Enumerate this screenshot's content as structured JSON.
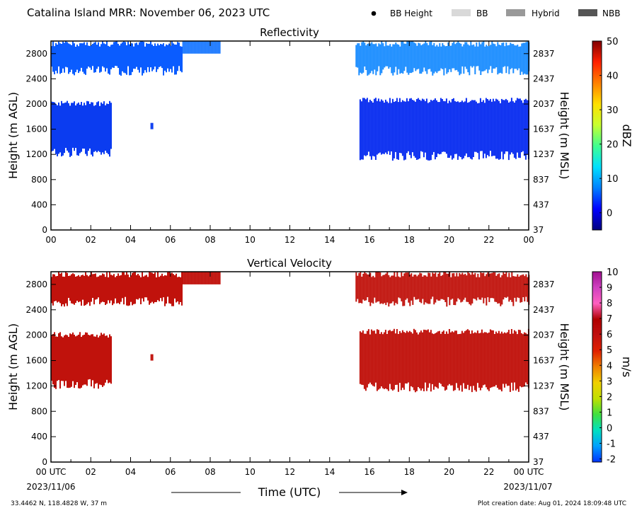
{
  "header": {
    "title": "Catalina Island MRR:  November 06, 2023 UTC",
    "legend": [
      {
        "label": "BB Height",
        "kind": "dot",
        "color": "#000000"
      },
      {
        "label": "BB",
        "kind": "swatch",
        "color": "#d9d9d9"
      },
      {
        "label": "Hybrid",
        "kind": "swatch",
        "color": "#999999"
      },
      {
        "label": "NBB",
        "kind": "swatch",
        "color": "#555555"
      }
    ]
  },
  "chart_data": [
    {
      "type": "heatmap",
      "title": "Reflectivity",
      "ylabel": "Height (m AGL)",
      "ylabel_right": "Height (m MSL)",
      "xlim": [
        0,
        24
      ],
      "ylim": [
        0,
        3000
      ],
      "x_ticks": [
        "00",
        "02",
        "04",
        "06",
        "08",
        "10",
        "12",
        "14",
        "16",
        "18",
        "20",
        "22",
        "00"
      ],
      "y_ticks": [
        "0",
        "400",
        "800",
        "1200",
        "1600",
        "2000",
        "2400",
        "2800"
      ],
      "y_ticks_right": [
        "37",
        "437",
        "837",
        "1237",
        "1637",
        "2037",
        "2437",
        "2837"
      ],
      "colorbar": {
        "label": "dBZ",
        "range": [
          -5,
          50
        ],
        "ticks": [
          "0",
          "10",
          "20",
          "30",
          "40",
          "50"
        ]
      },
      "regions": [
        {
          "x": [
            0.0,
            6.6
          ],
          "y": [
            2450,
            3000
          ],
          "value": 4,
          "color": "#0a5cff",
          "note": "upper echo layer, early period"
        },
        {
          "x": [
            6.6,
            8.5
          ],
          "y": [
            2800,
            3000
          ],
          "value": 6,
          "color": "#1f7bff"
        },
        {
          "x": [
            0.0,
            3.0
          ],
          "y": [
            1150,
            2050
          ],
          "value": 2,
          "color": "#0b3cf0",
          "note": "lower echo layer, early period"
        },
        {
          "x": [
            5.0,
            5.1
          ],
          "y": [
            1600,
            1700
          ],
          "value": 2,
          "color": "#0b3cf0"
        },
        {
          "x": [
            15.3,
            24.0
          ],
          "y": [
            2450,
            3000
          ],
          "value": 6,
          "color": "#1a8cff",
          "note": "upper echo layer, late period"
        },
        {
          "x": [
            15.5,
            24.0
          ],
          "y": [
            1100,
            2100
          ],
          "value": 1,
          "color": "#0a2ef0",
          "note": "lower echo layer, late period"
        }
      ]
    },
    {
      "type": "heatmap",
      "title": "Vertical Velocity",
      "ylabel": "Height (m AGL)",
      "ylabel_right": "Height (m MSL)",
      "xlabel": "Time (UTC)",
      "xlim": [
        0,
        24
      ],
      "ylim": [
        0,
        3000
      ],
      "x_ticks": [
        "00 UTC",
        "02",
        "04",
        "06",
        "08",
        "10",
        "12",
        "14",
        "16",
        "18",
        "20",
        "22",
        "00 UTC"
      ],
      "x_subticks": {
        "start": "2023/11/06",
        "end": "2023/11/07"
      },
      "y_ticks": [
        "0",
        "400",
        "800",
        "1200",
        "1600",
        "2000",
        "2400",
        "2800"
      ],
      "y_ticks_right": [
        "37",
        "437",
        "837",
        "1237",
        "1637",
        "2037",
        "2437",
        "2837"
      ],
      "colorbar": {
        "label": "m/s",
        "range": [
          -2.2,
          10
        ],
        "ticks": [
          "-2",
          "-1",
          "0",
          "1",
          "2",
          "3",
          "4",
          "5",
          "6",
          "7",
          "8",
          "9",
          "10"
        ]
      },
      "regions": [
        {
          "x": [
            0.0,
            6.6
          ],
          "y": [
            2450,
            3000
          ],
          "value": 5.8,
          "color": "#c0120c"
        },
        {
          "x": [
            6.6,
            8.5
          ],
          "y": [
            2800,
            3000
          ],
          "value": 5.8,
          "color": "#c0120c"
        },
        {
          "x": [
            0.0,
            3.0
          ],
          "y": [
            1150,
            2050
          ],
          "value": 5.8,
          "color": "#c0120c"
        },
        {
          "x": [
            5.0,
            5.1
          ],
          "y": [
            1600,
            1700
          ],
          "value": 5.8,
          "color": "#c0120c"
        },
        {
          "x": [
            15.3,
            24.0
          ],
          "y": [
            2450,
            3000
          ],
          "value": 5.8,
          "color": "#c0120c"
        },
        {
          "x": [
            15.5,
            24.0
          ],
          "y": [
            1100,
            2100
          ],
          "value": 5.8,
          "color": "#c0120c"
        }
      ]
    }
  ],
  "footer": {
    "location": "33.4462 N, 118.4828 W, 37 m",
    "creation": "Plot creation date: Aug 01, 2024 18:09:48 UTC"
  }
}
